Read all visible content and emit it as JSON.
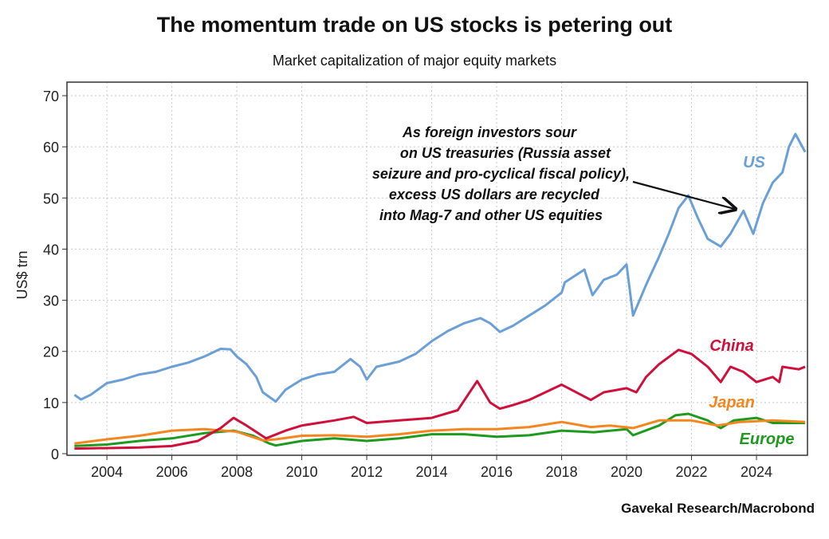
{
  "chart_data": {
    "type": "line",
    "title": "The momentum trade on US stocks is petering out",
    "subtitle": "Market capitalization of major equity markets",
    "ylabel": "US$ trn",
    "xlabel": "",
    "xlim": [
      2002.77,
      2025.57
    ],
    "ylim": [
      0,
      72
    ],
    "yticks": [
      0,
      10,
      20,
      30,
      40,
      50,
      60,
      70
    ],
    "xticks": [
      2004,
      2006,
      2008,
      2010,
      2012,
      2014,
      2016,
      2018,
      2020,
      2022,
      2024
    ],
    "grid": true,
    "annotation": {
      "lines": [
        "As foreign investors sour",
        "on US treasuries (Russia asset",
        "seizure and pro-cyclical fiscal policy),",
        "excess US dollars are recycled",
        "into Mag-7 and other US equities"
      ],
      "arrow_to": [
        2023.5,
        47.5
      ]
    },
    "source": "Gavekal Research/Macrobond",
    "series": [
      {
        "name": "US",
        "color": "#6a9fd8",
        "points": [
          [
            2003.0,
            11.5
          ],
          [
            2003.2,
            10.6
          ],
          [
            2003.5,
            11.5
          ],
          [
            2004.0,
            13.8
          ],
          [
            2004.5,
            14.5
          ],
          [
            2005.0,
            15.5
          ],
          [
            2005.5,
            16
          ],
          [
            2006.0,
            17
          ],
          [
            2006.5,
            17.8
          ],
          [
            2007.0,
            19
          ],
          [
            2007.5,
            20.5
          ],
          [
            2007.8,
            20.4
          ],
          [
            2008.0,
            19
          ],
          [
            2008.3,
            17.5
          ],
          [
            2008.6,
            15
          ],
          [
            2008.8,
            12
          ],
          [
            2009.2,
            10.2
          ],
          [
            2009.5,
            12.5
          ],
          [
            2010.0,
            14.5
          ],
          [
            2010.5,
            15.5
          ],
          [
            2011.0,
            16
          ],
          [
            2011.5,
            18.5
          ],
          [
            2011.8,
            17
          ],
          [
            2012.0,
            14.5
          ],
          [
            2012.3,
            17
          ],
          [
            2013.0,
            18
          ],
          [
            2013.5,
            19.5
          ],
          [
            2014.0,
            22
          ],
          [
            2014.5,
            24
          ],
          [
            2015.0,
            25.5
          ],
          [
            2015.5,
            26.5
          ],
          [
            2015.8,
            25.5
          ],
          [
            2016.1,
            23.8
          ],
          [
            2016.5,
            25
          ],
          [
            2017.0,
            27
          ],
          [
            2017.5,
            29
          ],
          [
            2018.0,
            31.5
          ],
          [
            2018.1,
            33.5
          ],
          [
            2018.7,
            36
          ],
          [
            2018.95,
            31
          ],
          [
            2019.3,
            34
          ],
          [
            2019.7,
            35
          ],
          [
            2020.0,
            37
          ],
          [
            2020.2,
            27
          ],
          [
            2020.6,
            33
          ],
          [
            2021.0,
            38.5
          ],
          [
            2021.3,
            43
          ],
          [
            2021.6,
            48
          ],
          [
            2021.9,
            50.5
          ],
          [
            2022.2,
            46
          ],
          [
            2022.5,
            42
          ],
          [
            2022.9,
            40.5
          ],
          [
            2023.2,
            43
          ],
          [
            2023.6,
            47.5
          ],
          [
            2023.9,
            43
          ],
          [
            2024.2,
            49
          ],
          [
            2024.5,
            53
          ],
          [
            2024.8,
            55
          ],
          [
            2025.0,
            60
          ],
          [
            2025.2,
            62.5
          ],
          [
            2025.5,
            59
          ]
        ]
      },
      {
        "name": "China",
        "color": "#d0103a",
        "points": [
          [
            2003.0,
            1
          ],
          [
            2005.0,
            1.2
          ],
          [
            2006.0,
            1.5
          ],
          [
            2006.8,
            2.5
          ],
          [
            2007.5,
            5
          ],
          [
            2007.9,
            7
          ],
          [
            2008.3,
            5.5
          ],
          [
            2008.9,
            3
          ],
          [
            2009.5,
            4.5
          ],
          [
            2010.0,
            5.5
          ],
          [
            2011.0,
            6.5
          ],
          [
            2011.6,
            7.2
          ],
          [
            2012.0,
            6
          ],
          [
            2013.0,
            6.5
          ],
          [
            2014.0,
            7
          ],
          [
            2014.8,
            8.5
          ],
          [
            2015.4,
            14.2
          ],
          [
            2015.8,
            10
          ],
          [
            2016.1,
            8.8
          ],
          [
            2016.5,
            9.5
          ],
          [
            2017.0,
            10.5
          ],
          [
            2018.0,
            13.5
          ],
          [
            2018.9,
            10.5
          ],
          [
            2019.3,
            12
          ],
          [
            2020.0,
            12.8
          ],
          [
            2020.3,
            12
          ],
          [
            2020.6,
            15
          ],
          [
            2021.0,
            17.5
          ],
          [
            2021.6,
            20.3
          ],
          [
            2022.0,
            19.5
          ],
          [
            2022.5,
            17
          ],
          [
            2022.9,
            14
          ],
          [
            2023.2,
            17
          ],
          [
            2023.6,
            16
          ],
          [
            2024.0,
            14
          ],
          [
            2024.5,
            15
          ],
          [
            2024.7,
            14
          ],
          [
            2024.8,
            17
          ],
          [
            2025.3,
            16.5
          ],
          [
            2025.5,
            17
          ]
        ]
      },
      {
        "name": "Japan",
        "color": "#f5861f",
        "points": [
          [
            2003.0,
            2
          ],
          [
            2004.0,
            2.8
          ],
          [
            2005.0,
            3.5
          ],
          [
            2006.0,
            4.5
          ],
          [
            2007.0,
            4.8
          ],
          [
            2008.0,
            4.3
          ],
          [
            2008.8,
            2.6
          ],
          [
            2009.2,
            2.8
          ],
          [
            2010.0,
            3.5
          ],
          [
            2011.0,
            3.6
          ],
          [
            2012.0,
            3.3
          ],
          [
            2013.0,
            3.8
          ],
          [
            2014.0,
            4.5
          ],
          [
            2015.0,
            4.8
          ],
          [
            2016.0,
            4.8
          ],
          [
            2017.0,
            5.2
          ],
          [
            2018.0,
            6.2
          ],
          [
            2018.9,
            5.2
          ],
          [
            2019.5,
            5.5
          ],
          [
            2020.2,
            5
          ],
          [
            2021.0,
            6.5
          ],
          [
            2022.0,
            6.5
          ],
          [
            2022.8,
            5.5
          ],
          [
            2023.5,
            6.2
          ],
          [
            2024.5,
            6.5
          ],
          [
            2025.5,
            6.2
          ]
        ]
      },
      {
        "name": "Europe",
        "color": "#1e9a1e",
        "points": [
          [
            2003.0,
            1.5
          ],
          [
            2004.0,
            1.8
          ],
          [
            2005.0,
            2.5
          ],
          [
            2006.0,
            3
          ],
          [
            2007.0,
            4
          ],
          [
            2007.9,
            4.5
          ],
          [
            2008.5,
            3.5
          ],
          [
            2009.0,
            2
          ],
          [
            2009.2,
            1.6
          ],
          [
            2010.0,
            2.5
          ],
          [
            2011.0,
            3
          ],
          [
            2012.0,
            2.5
          ],
          [
            2013.0,
            3
          ],
          [
            2014.0,
            3.8
          ],
          [
            2015.0,
            3.8
          ],
          [
            2016.0,
            3.3
          ],
          [
            2017.0,
            3.6
          ],
          [
            2018.0,
            4.5
          ],
          [
            2019.0,
            4.2
          ],
          [
            2020.0,
            4.8
          ],
          [
            2020.2,
            3.6
          ],
          [
            2021.0,
            5.5
          ],
          [
            2021.5,
            7.5
          ],
          [
            2021.9,
            7.8
          ],
          [
            2022.5,
            6.5
          ],
          [
            2022.9,
            5
          ],
          [
            2023.3,
            6.5
          ],
          [
            2024.0,
            7
          ],
          [
            2024.5,
            6
          ],
          [
            2025.0,
            6
          ],
          [
            2025.5,
            6
          ]
        ]
      }
    ]
  }
}
